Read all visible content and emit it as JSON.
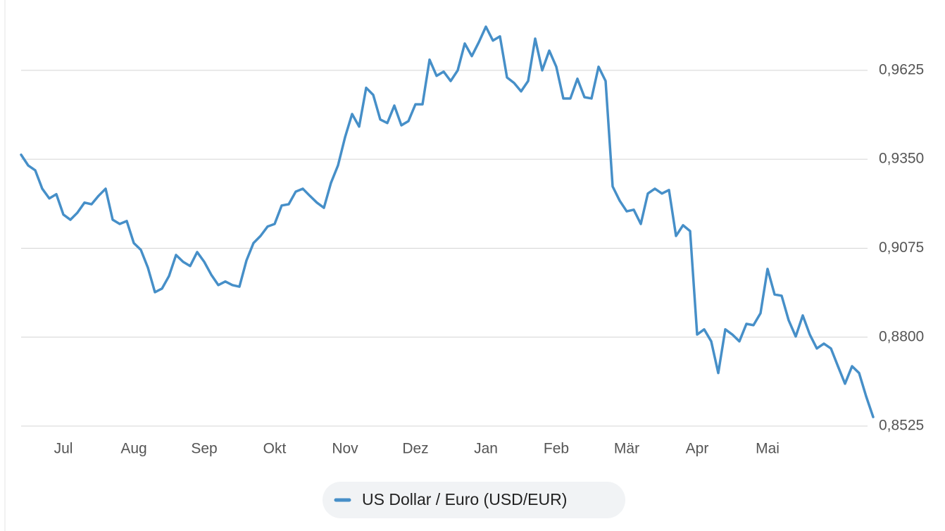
{
  "chart_data": {
    "type": "line",
    "categories": [
      null,
      null,
      null,
      null,
      null,
      null,
      "Jul",
      null,
      null,
      null,
      null,
      null,
      null,
      null,
      null,
      null,
      "Aug",
      null,
      null,
      null,
      null,
      null,
      null,
      null,
      null,
      null,
      "Sep",
      null,
      null,
      null,
      null,
      null,
      null,
      null,
      null,
      null,
      "Okt",
      null,
      null,
      null,
      null,
      null,
      null,
      null,
      null,
      null,
      "Nov",
      null,
      null,
      null,
      null,
      null,
      null,
      null,
      null,
      null,
      "Dez",
      null,
      null,
      null,
      null,
      null,
      null,
      null,
      null,
      null,
      "Jan",
      null,
      null,
      null,
      null,
      null,
      null,
      null,
      null,
      null,
      "Feb",
      null,
      null,
      null,
      null,
      null,
      null,
      null,
      null,
      null,
      "Mär",
      null,
      null,
      null,
      null,
      null,
      null,
      null,
      null,
      null,
      "Apr",
      null,
      null,
      null,
      null,
      null,
      null,
      null,
      null,
      null,
      "Mai",
      null,
      null,
      null,
      null,
      null,
      null,
      null,
      null,
      null,
      null,
      null,
      null,
      null,
      null,
      null
    ],
    "series": [
      {
        "name": "US Dollar / Euro (USD/EUR)",
        "color": "#468fc8",
        "values": [
          0.9364,
          0.9331,
          0.9316,
          0.9259,
          0.9229,
          0.9242,
          0.9179,
          0.9163,
          0.9185,
          0.9216,
          0.9211,
          0.9237,
          0.9259,
          0.9163,
          0.915,
          0.9159,
          0.9091,
          0.907,
          0.9015,
          0.8939,
          0.895,
          0.8989,
          0.9054,
          0.9033,
          0.902,
          0.9063,
          0.9033,
          0.8993,
          0.8961,
          0.8972,
          0.8961,
          0.8956,
          0.9037,
          0.9091,
          0.9113,
          0.9142,
          0.915,
          0.9207,
          0.9211,
          0.925,
          0.9259,
          0.9237,
          0.9216,
          0.92,
          0.9277,
          0.9331,
          0.9418,
          0.949,
          0.9451,
          0.9571,
          0.9549,
          0.9473,
          0.9462,
          0.9516,
          0.9455,
          0.9468,
          0.952,
          0.952,
          0.9658,
          0.9608,
          0.9621,
          0.9592,
          0.9625,
          0.9708,
          0.9669,
          0.9712,
          0.976,
          0.9717,
          0.973,
          0.9603,
          0.9586,
          0.956,
          0.9592,
          0.9723,
          0.9625,
          0.9686,
          0.9636,
          0.9538,
          0.9538,
          0.9599,
          0.9542,
          0.9538,
          0.9636,
          0.9592,
          0.9266,
          0.9222,
          0.9189,
          0.9194,
          0.915,
          0.9244,
          0.9259,
          0.9244,
          0.9255,
          0.9113,
          0.9146,
          0.9128,
          0.8808,
          0.8824,
          0.8787,
          0.8689,
          0.8824,
          0.8808,
          0.8787,
          0.8841,
          0.8837,
          0.8874,
          0.9011,
          0.8932,
          0.8928,
          0.8852,
          0.8802,
          0.8867,
          0.8808,
          0.8765,
          0.878,
          0.8765,
          0.871,
          0.8656,
          0.871,
          0.8689,
          0.8617,
          0.8553
        ]
      }
    ],
    "ylim": [
      0.8525,
      0.9775
    ],
    "yticks": [
      {
        "value": 0.8525,
        "label": "0,8525"
      },
      {
        "value": 0.88,
        "label": "0,8800"
      },
      {
        "value": 0.9075,
        "label": "0,9075"
      },
      {
        "value": 0.935,
        "label": "0,9350"
      },
      {
        "value": 0.9625,
        "label": "0,9625"
      }
    ],
    "grid": true
  }
}
